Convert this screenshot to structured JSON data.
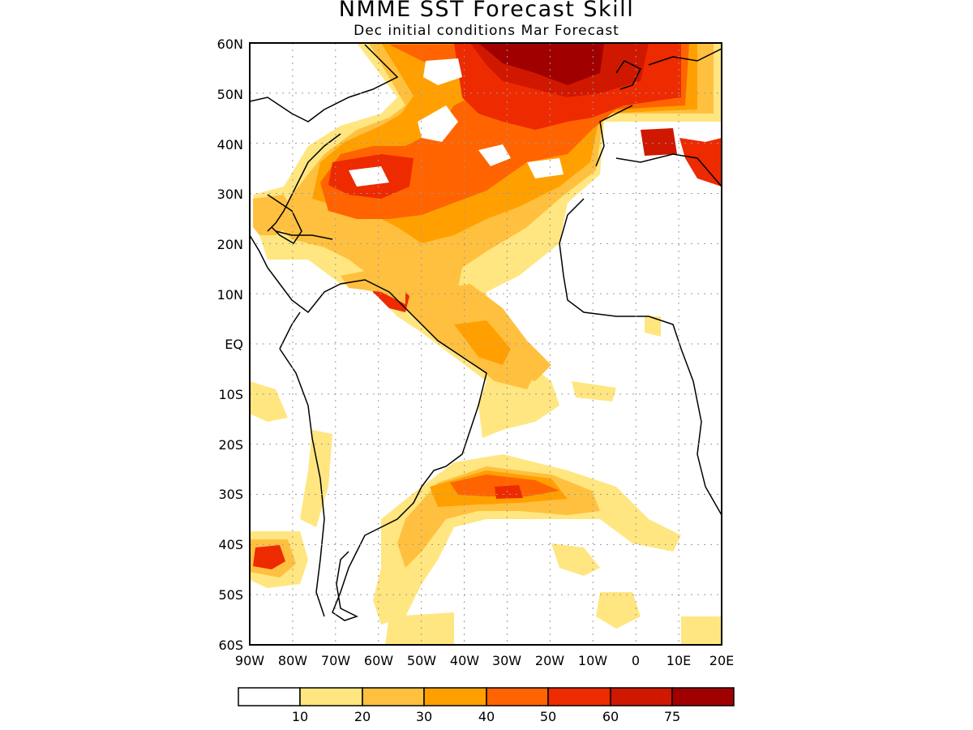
{
  "map": {
    "title": "NMME SST Forecast Skill",
    "subtitle": "Dec initial conditions  Mar Forecast",
    "lat_labels": [
      "60N",
      "50N",
      "40N",
      "30N",
      "20N",
      "10N",
      "EQ",
      "10S",
      "20S",
      "30S",
      "40S",
      "50S",
      "60S"
    ],
    "lon_labels": [
      "90W",
      "80W",
      "70W",
      "60W",
      "50W",
      "40W",
      "30W",
      "20W",
      "10W",
      "0",
      "10E",
      "20E"
    ],
    "lat_range": [
      -60,
      60
    ],
    "lon_range": [
      -90,
      20
    ],
    "grid": "dotted"
  },
  "legend": {
    "colors": [
      "#ffffff",
      "#ffe680",
      "#ffc040",
      "#ffa000",
      "#ff6400",
      "#ee2a00",
      "#d01800",
      "#a00000"
    ],
    "labels": [
      "10",
      "20",
      "30",
      "40",
      "50",
      "60",
      "75"
    ]
  }
}
